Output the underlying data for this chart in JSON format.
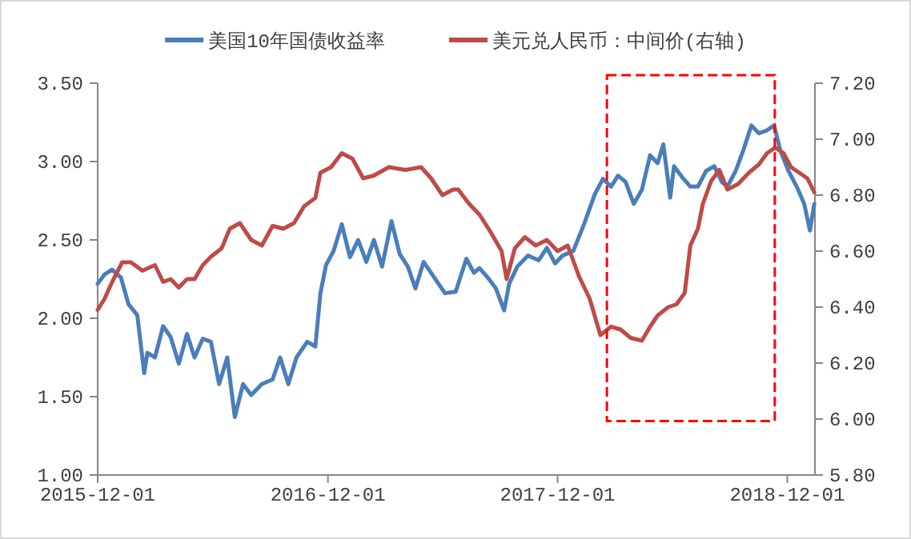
{
  "chart_data": {
    "type": "line",
    "legend": "top",
    "grid": false,
    "xlim": [
      "2015-12-01",
      "2019-01-14"
    ],
    "xticks": [
      "2015-12-01",
      "2016-12-01",
      "2017-12-01",
      "2018-12-01"
    ],
    "ylim": [
      1,
      3.5
    ],
    "yticks": [
      {
        "value": 1,
        "label": "1.00"
      },
      {
        "value": 1.5,
        "label": "1.50"
      },
      {
        "value": 2,
        "label": "2.00"
      },
      {
        "value": 2.5,
        "label": "2.50"
      },
      {
        "value": 3,
        "label": "3.00"
      },
      {
        "value": 3.5,
        "label": "3.50"
      }
    ],
    "y2lim": [
      5.8,
      7.2
    ],
    "y2ticks": [
      {
        "value": 5.8,
        "label": "5.80"
      },
      {
        "value": 6,
        "label": "6.00"
      },
      {
        "value": 6.2,
        "label": "6.20"
      },
      {
        "value": 6.4,
        "label": "6.40"
      },
      {
        "value": 6.6,
        "label": "6.60"
      },
      {
        "value": 6.8,
        "label": "6.80"
      },
      {
        "value": 7,
        "label": "7.00"
      },
      {
        "value": 7.2,
        "label": "7.20"
      }
    ],
    "series": [
      {
        "name": "美国10年国债收益率",
        "color": "#4a7ebb",
        "x": [
          "2015-12-01",
          "2015-12-12",
          "2015-12-24",
          "2016-01-07",
          "2016-01-19",
          "2016-02-02",
          "2016-02-13",
          "2016-02-18",
          "2016-03-01",
          "2016-03-14",
          "2016-03-26",
          "2016-04-08",
          "2016-04-21",
          "2016-05-03",
          "2016-05-16",
          "2016-05-29",
          "2016-06-11",
          "2016-06-24",
          "2016-07-06",
          "2016-07-19",
          "2016-08-01",
          "2016-08-18",
          "2016-09-04",
          "2016-09-16",
          "2016-09-29",
          "2016-10-12",
          "2016-10-29",
          "2016-11-11",
          "2016-11-19",
          "2016-11-28",
          "2016-12-10",
          "2016-12-23",
          "2017-01-05",
          "2017-01-18",
          "2017-01-31",
          "2017-02-12",
          "2017-02-25",
          "2017-03-12",
          "2017-03-25",
          "2017-04-07",
          "2017-04-19",
          "2017-05-02",
          "2017-05-19",
          "2017-06-05",
          "2017-06-22",
          "2017-07-09",
          "2017-07-21",
          "2017-07-30",
          "2017-08-12",
          "2017-08-25",
          "2017-09-07",
          "2017-09-15",
          "2017-09-28",
          "2017-10-15",
          "2017-11-01",
          "2017-11-14",
          "2017-11-27",
          "2017-12-09",
          "2017-12-26",
          "2018-01-12",
          "2018-01-29",
          "2018-02-11",
          "2018-02-24",
          "2018-03-07",
          "2018-03-19",
          "2018-04-01",
          "2018-04-14",
          "2018-04-27",
          "2018-05-09",
          "2018-05-18",
          "2018-05-29",
          "2018-06-04",
          "2018-06-17",
          "2018-06-30",
          "2018-07-12",
          "2018-07-25",
          "2018-08-07",
          "2018-08-19",
          "2018-08-28",
          "2018-09-10",
          "2018-09-22",
          "2018-10-05",
          "2018-10-17",
          "2018-10-30",
          "2018-11-10",
          "2018-11-20",
          "2018-12-03",
          "2018-12-16",
          "2018-12-28",
          "2019-01-06",
          "2019-01-13"
        ],
        "values": [
          2.22,
          2.28,
          2.31,
          2.26,
          2.09,
          2.02,
          1.65,
          1.78,
          1.75,
          1.95,
          1.88,
          1.71,
          1.9,
          1.75,
          1.87,
          1.85,
          1.58,
          1.75,
          1.37,
          1.58,
          1.51,
          1.58,
          1.61,
          1.75,
          1.58,
          1.75,
          1.85,
          1.82,
          2.16,
          2.34,
          2.43,
          2.6,
          2.39,
          2.5,
          2.36,
          2.5,
          2.33,
          2.62,
          2.41,
          2.33,
          2.19,
          2.36,
          2.26,
          2.16,
          2.17,
          2.38,
          2.29,
          2.32,
          2.26,
          2.19,
          2.05,
          2.22,
          2.33,
          2.4,
          2.37,
          2.45,
          2.35,
          2.4,
          2.43,
          2.6,
          2.79,
          2.89,
          2.84,
          2.91,
          2.87,
          2.73,
          2.82,
          3.04,
          2.99,
          3.11,
          2.77,
          2.97,
          2.9,
          2.84,
          2.84,
          2.94,
          2.97,
          2.87,
          2.84,
          2.94,
          3.07,
          3.23,
          3.18,
          3.2,
          3.23,
          3.07,
          2.94,
          2.84,
          2.73,
          2.56,
          2.73
        ]
      },
      {
        "name": "美元兑人民币：中间价(右轴)",
        "color": "#be4b48",
        "axis": "y2",
        "x": [
          "2015-12-01",
          "2015-12-12",
          "2015-12-24",
          "2016-01-09",
          "2016-01-23",
          "2016-02-10",
          "2016-03-01",
          "2016-03-14",
          "2016-03-26",
          "2016-04-08",
          "2016-04-21",
          "2016-05-03",
          "2016-05-16",
          "2016-05-29",
          "2016-06-15",
          "2016-06-28",
          "2016-07-14",
          "2016-08-01",
          "2016-08-18",
          "2016-09-04",
          "2016-09-21",
          "2016-10-08",
          "2016-10-24",
          "2016-11-11",
          "2016-11-19",
          "2016-12-06",
          "2016-12-23",
          "2017-01-09",
          "2017-01-26",
          "2017-02-12",
          "2017-03-08",
          "2017-04-03",
          "2017-04-28",
          "2017-05-14",
          "2017-06-01",
          "2017-06-18",
          "2017-06-26",
          "2017-07-13",
          "2017-07-30",
          "2017-08-16",
          "2017-09-03",
          "2017-09-11",
          "2017-09-24",
          "2017-10-10",
          "2017-10-27",
          "2017-11-14",
          "2017-12-01",
          "2017-12-17",
          "2018-01-04",
          "2018-01-21",
          "2018-02-07",
          "2018-02-24",
          "2018-03-11",
          "2018-03-27",
          "2018-04-14",
          "2018-04-27",
          "2018-05-09",
          "2018-05-26",
          "2018-06-08",
          "2018-06-21",
          "2018-06-30",
          "2018-07-12",
          "2018-07-20",
          "2018-08-02",
          "2018-08-15",
          "2018-08-28",
          "2018-09-14",
          "2018-10-01",
          "2018-10-17",
          "2018-10-30",
          "2018-11-12",
          "2018-11-25",
          "2018-12-07",
          "2018-12-20",
          "2019-01-02",
          "2019-01-13"
        ],
        "values": [
          6.39,
          6.43,
          6.49,
          6.56,
          6.56,
          6.53,
          6.55,
          6.49,
          6.5,
          6.47,
          6.5,
          6.5,
          6.55,
          6.58,
          6.61,
          6.68,
          6.7,
          6.64,
          6.62,
          6.69,
          6.68,
          6.7,
          6.76,
          6.79,
          6.88,
          6.9,
          6.95,
          6.93,
          6.86,
          6.87,
          6.9,
          6.89,
          6.9,
          6.86,
          6.8,
          6.82,
          6.82,
          6.77,
          6.73,
          6.67,
          6.6,
          6.5,
          6.61,
          6.65,
          6.62,
          6.64,
          6.6,
          6.62,
          6.51,
          6.43,
          6.3,
          6.33,
          6.32,
          6.29,
          6.28,
          6.33,
          6.37,
          6.4,
          6.41,
          6.45,
          6.62,
          6.68,
          6.77,
          6.85,
          6.89,
          6.82,
          6.84,
          6.88,
          6.91,
          6.95,
          6.97,
          6.95,
          6.9,
          6.88,
          6.86,
          6.81
        ]
      }
    ]
  }
}
